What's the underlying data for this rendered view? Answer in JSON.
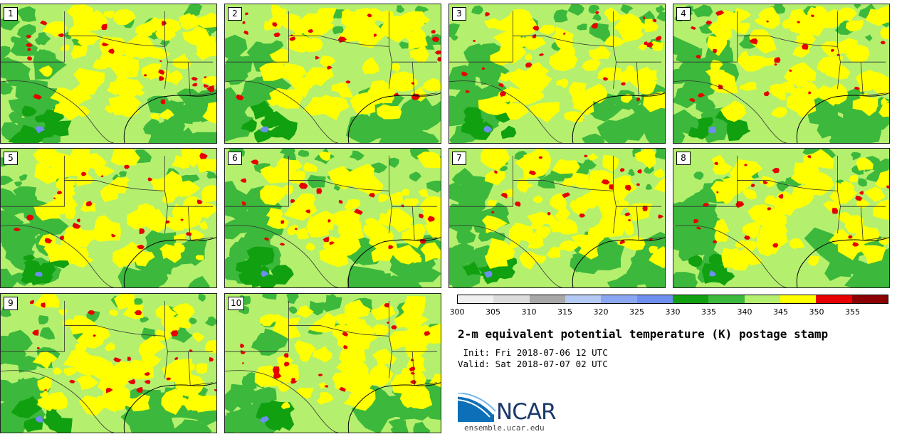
{
  "panels": [
    {
      "label": "1"
    },
    {
      "label": "2"
    },
    {
      "label": "3"
    },
    {
      "label": "4"
    },
    {
      "label": "5"
    },
    {
      "label": "6"
    },
    {
      "label": "7"
    },
    {
      "label": "8"
    },
    {
      "label": "9"
    },
    {
      "label": "10"
    }
  ],
  "legend": {
    "ticks": [
      "300",
      "305",
      "310",
      "315",
      "320",
      "325",
      "330",
      "335",
      "340",
      "345",
      "350",
      "355"
    ],
    "colors": [
      "#f0f0f0",
      "#dcdcdc",
      "#a8a8a8",
      "#b4c8f4",
      "#8aa6f0",
      "#6e8ef0",
      "#10a010",
      "#3cb83c",
      "#b4f06e",
      "#ffff00",
      "#e60000",
      "#8b0000"
    ]
  },
  "map_colors": {
    "dark_green": "#10a010",
    "green": "#3cb83c",
    "light_green": "#b4f06e",
    "yellow": "#ffff00",
    "red": "#e60000",
    "blue": "#6e8ef0"
  },
  "text": {
    "title": "2-m equivalent potential temperature (K) postage stamp",
    "init": " Init: Fri 2018-07-06 12 UTC",
    "valid": "Valid: Sat 2018-07-07 02 UTC",
    "logo": "NCAR",
    "site": "ensemble.ucar.edu"
  }
}
